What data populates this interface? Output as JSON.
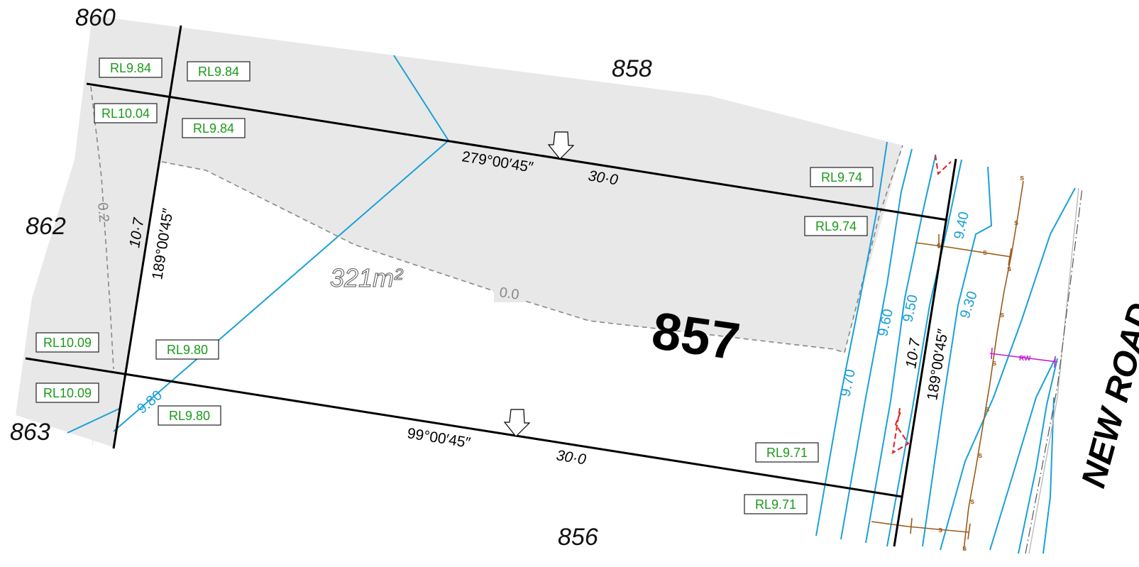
{
  "lots": {
    "main": "857",
    "n860": "860",
    "n858": "858",
    "n862": "862",
    "n863": "863",
    "n856": "856"
  },
  "boundary": {
    "top_bearing": "279°00′45″",
    "top_dist": "30·0",
    "bottom_bearing": "99°00′45″",
    "bottom_dist": "30·0",
    "left_bearing": "189°00′45″",
    "left_dist": "10·7",
    "right_bearing": "189°00′45″",
    "right_dist": "10·7"
  },
  "area": "321m²",
  "dashed_labels": {
    "left": "0.2",
    "middle": "0.0"
  },
  "contours": {
    "c970": "9.70",
    "c960": "9.60",
    "c950": "9.50",
    "c940": "9.40",
    "c930": "9.30",
    "c980": "9.80"
  },
  "rl_labels": {
    "r1": "RL9.84",
    "r2": "RL9.84",
    "r3": "RL10.04",
    "r4": "RL9.84",
    "r5": "RL9.74",
    "r6": "RL9.74",
    "r7": "RL10.09",
    "r8": "RL9.80",
    "r9": "RL10.09",
    "r10": "RL9.80",
    "r11": "RL9.71",
    "r12": "RL9.71"
  },
  "road_name": "NEW ROAD",
  "services": {
    "sewer_mark": "s",
    "rw_mark": "RW"
  },
  "colors": {
    "shade": "#e8e8e8",
    "boundary": "#000000",
    "contour": "#1aa0d8",
    "rl_text": "#1a9a1a",
    "sewer": "#9c5a1a",
    "retaining_wall": "#c020d0",
    "marker": "#e02020"
  }
}
